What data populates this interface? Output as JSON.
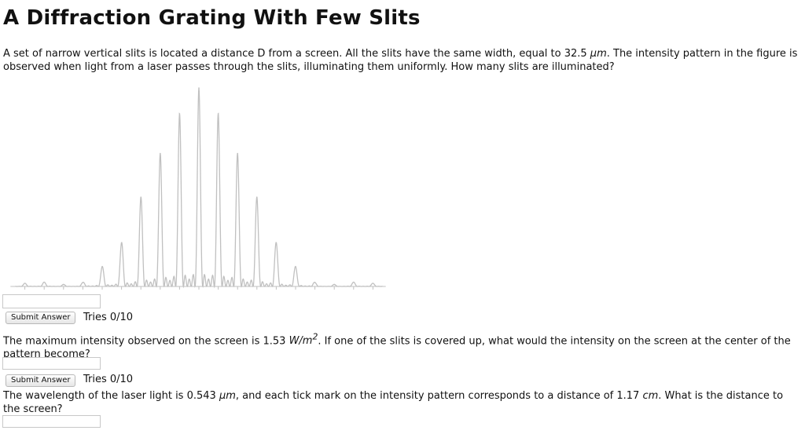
{
  "title": "A Diffraction Grating With Few Slits",
  "question1": {
    "text_before": "A set of narrow vertical slits is located a distance D from a screen. All the slits have the same width, equal to 32.5 ",
    "unit": "μm",
    "text_after": ". The intensity pattern in the figure is observed when light from a laser passes through the slits, illuminating them uniformly. How many slits are illuminated?",
    "answer_value": "",
    "submit_label": "Submit Answer",
    "tries": "Tries 0/10"
  },
  "question2": {
    "text_before": "The maximum intensity observed on the screen is 1.53 ",
    "unit_base": "W/m",
    "unit_exp": "2",
    "text_after": ". If one of the slits is covered up, what would the intensity on the screen at the center of the pattern become?",
    "answer_value": "",
    "submit_label": "Submit Answer",
    "tries": "Tries 0/10"
  },
  "question3": {
    "text_before": "The wavelength of the laser light is 0.543 ",
    "unit1": "μm",
    "text_middle": ", and each tick mark on the intensity pattern corresponds to a distance of 1.17 ",
    "unit2": "cm",
    "text_after": ". What is the distance to the screen?",
    "answer_value": ""
  },
  "chart_data": {
    "type": "line",
    "title": "",
    "xlabel": "",
    "ylabel": "",
    "description_free": true,
    "slits": 5,
    "center_tick": 0,
    "xlim": [
      -9.5,
      9.5
    ],
    "ticks": [
      -9,
      -8,
      -7,
      -6,
      -5,
      -4,
      -3,
      -2,
      -1,
      0,
      1,
      2,
      3,
      4,
      5,
      6,
      7,
      8,
      9
    ],
    "principal_maxima_x": [
      -7,
      -6,
      -5,
      -4,
      -3,
      -2,
      -1,
      0,
      1,
      2,
      3,
      4,
      5,
      6,
      7
    ],
    "principal_maxima_y": [
      0.01,
      0.02,
      0.1,
      0.22,
      0.45,
      0.67,
      0.87,
      1.0,
      0.87,
      0.67,
      0.45,
      0.22,
      0.1,
      0.02,
      0.01
    ],
    "ylim": [
      0,
      1
    ],
    "line_color": "#c0c0c0"
  }
}
